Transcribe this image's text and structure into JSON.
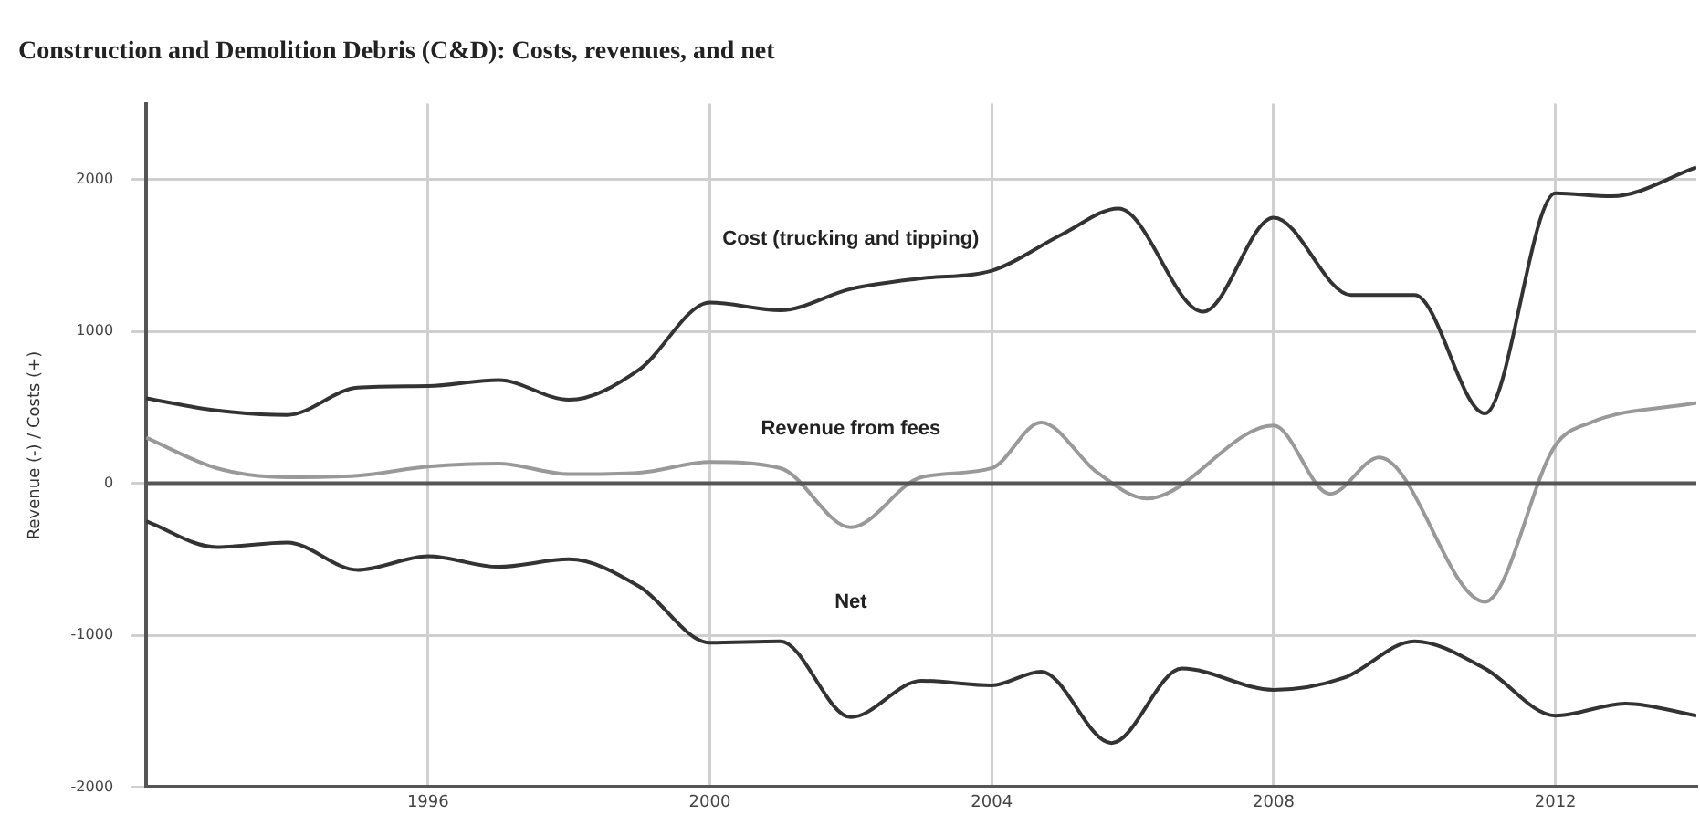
{
  "chart_data": {
    "type": "line",
    "title": "Construction and Demolition Debris (C&D): Costs, revenues, and net",
    "ylabel": "Revenue (-) / Costs (+)",
    "xlim": [
      1992,
      2014
    ],
    "xticks": [
      1996,
      2000,
      2004,
      2008,
      2012
    ],
    "ylim": [
      -2000,
      2500
    ],
    "yticks": [
      -2000,
      -1000,
      0,
      1000,
      2000
    ],
    "grid": true,
    "legend": false,
    "marker": "none",
    "line_style": "solid",
    "ref_lines": [
      {
        "axis": "y",
        "value": 0,
        "color": "#555555"
      }
    ],
    "series": [
      {
        "name": "Cost (trucking and tipping)",
        "color": "#333333",
        "x": [
          1992,
          1993,
          1994,
          1995,
          1996,
          1997,
          1998,
          1999,
          2000,
          2001,
          2002,
          2003,
          2004,
          2005,
          2005.8,
          2007,
          2008,
          2009.1,
          2010,
          2011,
          2012,
          2012.8,
          2014
        ],
        "values": [
          560,
          480,
          450,
          630,
          640,
          680,
          550,
          750,
          1190,
          1140,
          1280,
          1350,
          1400,
          1640,
          1810,
          1130,
          1750,
          1240,
          1240,
          460,
          1910,
          1890,
          2080
        ]
      },
      {
        "name": "Revenue from fees",
        "color": "#999999",
        "x": [
          1992,
          1993,
          1994,
          1995,
          1996,
          1997,
          1998,
          1999,
          2000,
          2001,
          2002,
          2003,
          2004,
          2004.7,
          2005.5,
          2006.2,
          2008,
          2008.8,
          2009.5,
          2011,
          2012,
          2012.5,
          2014
        ],
        "values": [
          300,
          100,
          40,
          50,
          110,
          130,
          60,
          70,
          140,
          100,
          -290,
          40,
          100,
          400,
          70,
          -100,
          380,
          -70,
          170,
          -780,
          250,
          400,
          530
        ]
      },
      {
        "name": "Net",
        "color": "#333333",
        "x": [
          1992,
          1993,
          1994,
          1995,
          1996,
          1997,
          1998,
          1999,
          2000,
          2001,
          2002,
          2003,
          2004,
          2004.7,
          2005.7,
          2006.7,
          2008,
          2009,
          2010,
          2011,
          2012,
          2013,
          2014
        ],
        "values": [
          -250,
          -420,
          -390,
          -570,
          -480,
          -550,
          -500,
          -680,
          -1050,
          -1040,
          -1540,
          -1300,
          -1330,
          -1240,
          -1710,
          -1220,
          -1360,
          -1280,
          -1040,
          -1220,
          -1530,
          -1450,
          -1530
        ]
      }
    ]
  }
}
